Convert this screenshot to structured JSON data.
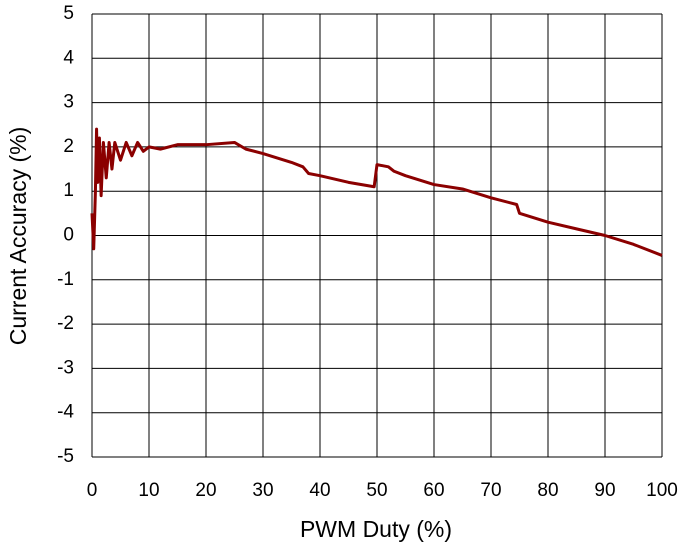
{
  "chart_data": {
    "type": "line",
    "x_label": "PWM Duty (%)",
    "y_label": "Current Accuracy (%)",
    "xlim": [
      0,
      100
    ],
    "xticks": [
      0,
      10,
      20,
      30,
      40,
      50,
      60,
      70,
      80,
      90,
      100
    ],
    "ylim": [
      -5,
      5
    ],
    "yticks": [
      -5,
      -4,
      -3,
      -2,
      -1,
      0,
      1,
      2,
      3,
      4,
      5
    ],
    "grid": true,
    "series": [
      {
        "color": "#8b0000",
        "x": [
          0,
          0.3,
          0.6,
          0.8,
          1.0,
          1.3,
          1.6,
          2,
          2.5,
          3,
          3.5,
          4,
          5,
          6,
          7,
          8,
          9,
          10,
          12,
          15,
          20,
          25,
          27,
          30,
          35,
          37,
          38,
          40,
          45,
          49.5,
          50,
          52,
          53,
          55,
          60,
          65,
          70,
          74.5,
          75,
          80,
          85,
          90,
          95,
          100
        ],
        "values": [
          0.5,
          -0.3,
          1.0,
          2.4,
          1.2,
          2.2,
          0.9,
          2.1,
          1.3,
          2.1,
          1.5,
          2.1,
          1.7,
          2.1,
          1.8,
          2.1,
          1.9,
          2.0,
          1.95,
          2.05,
          2.05,
          2.1,
          1.95,
          1.85,
          1.65,
          1.55,
          1.4,
          1.35,
          1.2,
          1.1,
          1.6,
          1.55,
          1.45,
          1.35,
          1.15,
          1.05,
          0.85,
          0.7,
          0.5,
          0.3,
          0.15,
          0.0,
          -0.2,
          -0.45
        ]
      }
    ]
  }
}
